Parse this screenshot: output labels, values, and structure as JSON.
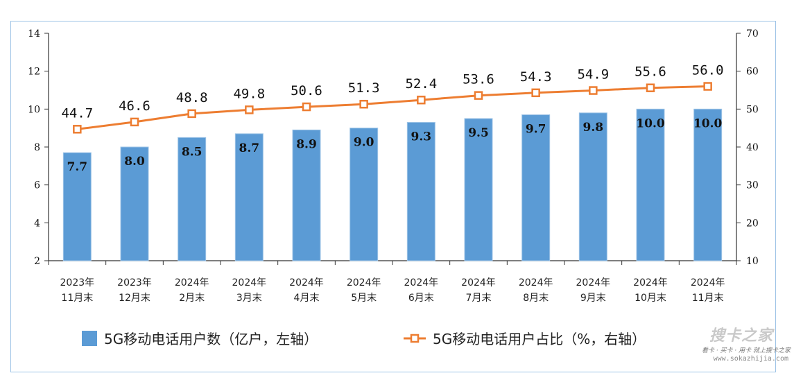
{
  "chart_data": {
    "type": "bar",
    "categories": [
      [
        "2023年",
        "11月末"
      ],
      [
        "2023年",
        "12月末"
      ],
      [
        "2024年",
        "2月末"
      ],
      [
        "2024年",
        "3月末"
      ],
      [
        "2024年",
        "4月末"
      ],
      [
        "2024年",
        "5月末"
      ],
      [
        "2024年",
        "6月末"
      ],
      [
        "2024年",
        "7月末"
      ],
      [
        "2024年",
        "8月末"
      ],
      [
        "2024年",
        "9月末"
      ],
      [
        "2024年",
        "10月末"
      ],
      [
        "2024年",
        "11月末"
      ]
    ],
    "series": [
      {
        "name": "5G移动电话用户数（亿户，左轴）",
        "type": "bar",
        "axis": "left",
        "color": "#5b9bd5",
        "values": [
          7.7,
          8.0,
          8.5,
          8.7,
          8.9,
          9.0,
          9.3,
          9.5,
          9.7,
          9.8,
          10.0,
          10.0
        ],
        "labels": [
          "7.7",
          "8.0",
          "8.5",
          "8.7",
          "8.9",
          "9.0",
          "9.3",
          "9.5",
          "9.7",
          "9.8",
          "10.0",
          "10.0"
        ]
      },
      {
        "name": "5G移动电话用户占比（%，右轴）",
        "type": "line",
        "axis": "right",
        "color": "#ed7d31",
        "values": [
          44.7,
          46.6,
          48.8,
          49.8,
          50.6,
          51.3,
          52.4,
          53.6,
          54.3,
          54.9,
          55.6,
          56.0
        ],
        "labels": [
          "44.7",
          "46.6",
          "48.8",
          "49.8",
          "50.6",
          "51.3",
          "52.4",
          "53.6",
          "54.3",
          "54.9",
          "55.6",
          "56.0"
        ]
      }
    ],
    "y_left": {
      "ylim": [
        2,
        14
      ],
      "ticks": [
        "2",
        "4",
        "6",
        "8",
        "10",
        "12",
        "14"
      ]
    },
    "y_right": {
      "ylim": [
        10,
        70
      ],
      "ticks": [
        "10",
        "20",
        "30",
        "40",
        "50",
        "60",
        "70"
      ]
    },
    "grid": false,
    "legend": "bottom"
  },
  "watermark": {
    "logo": "搜卡之家",
    "tagline": "看卡 · 买卡 · 用卡 就上搜卡之家",
    "url": "www.sokazhijia.com"
  }
}
